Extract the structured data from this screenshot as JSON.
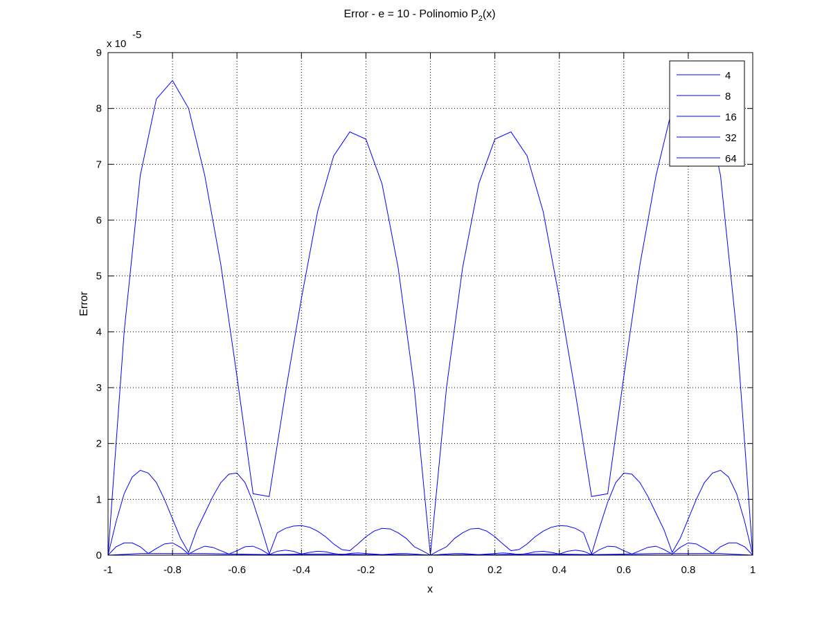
{
  "chart_data": {
    "type": "line",
    "title": "Error - e = 10 - Polinomio P",
    "title_sub": "2",
    "title_suffix": "(x)",
    "xlabel": "x",
    "ylabel": "Error",
    "exponent_base": "x 10",
    "exponent_power": "-5",
    "xlim": [
      -1,
      1
    ],
    "ylim": [
      0,
      9
    ],
    "xticks": [
      -1,
      -0.8,
      -0.6,
      -0.4,
      -0.2,
      0,
      0.2,
      0.4,
      0.6,
      0.8,
      1
    ],
    "xtick_labels": [
      "-1",
      "-0.8",
      "-0.6",
      "-0.4",
      "-0.2",
      "0",
      "0.2",
      "0.4",
      "0.6",
      "0.8",
      "1"
    ],
    "yticks": [
      0,
      1,
      2,
      3,
      4,
      5,
      6,
      7,
      8,
      9
    ],
    "ytick_labels": [
      "0",
      "1",
      "2",
      "3",
      "4",
      "5",
      "6",
      "7",
      "8",
      "9"
    ],
    "grid": true,
    "legend_position": "top-right",
    "line_color": "#0000ff",
    "series": [
      {
        "name": "4",
        "x": [
          -1,
          -0.95,
          -0.9,
          -0.85,
          -0.8,
          -0.75,
          -0.7,
          -0.65,
          -0.6,
          -0.55,
          -0.5,
          -0.45,
          -0.4,
          -0.35,
          -0.3,
          -0.25,
          -0.2,
          -0.15,
          -0.1,
          -0.05,
          0,
          0.05,
          0.1,
          0.15,
          0.2,
          0.25,
          0.3,
          0.35,
          0.4,
          0.45,
          0.5,
          0.55,
          0.6,
          0.65,
          0.7,
          0.75,
          0.8,
          0.85,
          0.9,
          0.95,
          1
        ],
        "y": [
          0,
          4.0,
          6.8,
          8.17,
          8.5,
          8.0,
          6.8,
          5.2,
          3.2,
          1.1,
          1.05,
          2.9,
          4.6,
          6.15,
          7.15,
          7.58,
          7.45,
          6.65,
          5.15,
          3.0,
          0,
          3.0,
          5.15,
          6.65,
          7.45,
          7.58,
          7.15,
          6.15,
          4.6,
          2.9,
          1.05,
          1.1,
          3.2,
          5.2,
          6.8,
          8.0,
          8.5,
          8.17,
          6.8,
          4.0,
          0
        ]
      },
      {
        "name": "8",
        "x": [
          -1,
          -0.975,
          -0.95,
          -0.925,
          -0.9,
          -0.875,
          -0.85,
          -0.825,
          -0.8,
          -0.775,
          -0.75,
          -0.725,
          -0.7,
          -0.675,
          -0.65,
          -0.625,
          -0.6,
          -0.575,
          -0.55,
          -0.525,
          -0.5,
          -0.475,
          -0.45,
          -0.425,
          -0.4,
          -0.375,
          -0.35,
          -0.325,
          -0.3,
          -0.275,
          -0.25,
          -0.225,
          -0.2,
          -0.175,
          -0.15,
          -0.125,
          -0.1,
          -0.075,
          -0.05,
          -0.025,
          0,
          0.025,
          0.05,
          0.075,
          0.1,
          0.125,
          0.15,
          0.175,
          0.2,
          0.225,
          0.25,
          0.275,
          0.3,
          0.325,
          0.35,
          0.375,
          0.4,
          0.425,
          0.45,
          0.475,
          0.5,
          0.525,
          0.55,
          0.575,
          0.6,
          0.625,
          0.65,
          0.675,
          0.7,
          0.725,
          0.75,
          0.775,
          0.8,
          0.825,
          0.85,
          0.875,
          0.9,
          0.925,
          0.95,
          0.975,
          1
        ],
        "y": [
          0,
          0.6,
          1.1,
          1.4,
          1.52,
          1.47,
          1.3,
          1.0,
          0.65,
          0.3,
          0.05,
          0.45,
          0.75,
          1.05,
          1.3,
          1.45,
          1.47,
          1.3,
          0.95,
          0.5,
          0.02,
          0.4,
          0.48,
          0.52,
          0.53,
          0.5,
          0.43,
          0.33,
          0.2,
          0.1,
          0.08,
          0.2,
          0.33,
          0.43,
          0.48,
          0.47,
          0.4,
          0.3,
          0.15,
          0.08,
          0,
          0.08,
          0.15,
          0.3,
          0.4,
          0.47,
          0.48,
          0.43,
          0.33,
          0.2,
          0.08,
          0.1,
          0.2,
          0.33,
          0.43,
          0.5,
          0.53,
          0.52,
          0.48,
          0.4,
          0.02,
          0.5,
          0.95,
          1.3,
          1.47,
          1.45,
          1.3,
          1.05,
          0.75,
          0.45,
          0.05,
          0.3,
          0.65,
          1.0,
          1.3,
          1.47,
          1.52,
          1.4,
          1.1,
          0.6,
          0
        ]
      },
      {
        "name": "16",
        "x": [
          -1,
          -0.975,
          -0.95,
          -0.925,
          -0.9,
          -0.875,
          -0.85,
          -0.825,
          -0.8,
          -0.775,
          -0.75,
          -0.725,
          -0.7,
          -0.675,
          -0.65,
          -0.625,
          -0.6,
          -0.575,
          -0.55,
          -0.525,
          -0.5,
          -0.475,
          -0.45,
          -0.425,
          -0.4,
          -0.375,
          -0.35,
          -0.325,
          -0.3,
          -0.275,
          -0.25,
          -0.225,
          -0.2,
          -0.175,
          -0.15,
          -0.125,
          -0.1,
          -0.075,
          -0.05,
          -0.025,
          0,
          0.025,
          0.05,
          0.075,
          0.1,
          0.125,
          0.15,
          0.175,
          0.2,
          0.225,
          0.25,
          0.275,
          0.3,
          0.325,
          0.35,
          0.375,
          0.4,
          0.425,
          0.45,
          0.475,
          0.5,
          0.525,
          0.55,
          0.575,
          0.6,
          0.625,
          0.65,
          0.675,
          0.7,
          0.725,
          0.75,
          0.775,
          0.8,
          0.825,
          0.85,
          0.875,
          0.9,
          0.925,
          0.95,
          0.975,
          1
        ],
        "y": [
          0,
          0.15,
          0.22,
          0.22,
          0.15,
          0.03,
          0.12,
          0.2,
          0.22,
          0.14,
          0.02,
          0.1,
          0.16,
          0.14,
          0.08,
          0.02,
          0.08,
          0.15,
          0.16,
          0.1,
          0.01,
          0.07,
          0.09,
          0.07,
          0.02,
          0.05,
          0.07,
          0.06,
          0.03,
          0.01,
          0.03,
          0.04,
          0.03,
          0.02,
          0.01,
          0.02,
          0.03,
          0.03,
          0.02,
          0.01,
          0,
          0.01,
          0.02,
          0.03,
          0.03,
          0.02,
          0.01,
          0.02,
          0.03,
          0.04,
          0.03,
          0.01,
          0.03,
          0.06,
          0.07,
          0.05,
          0.02,
          0.07,
          0.09,
          0.07,
          0.01,
          0.1,
          0.16,
          0.15,
          0.08,
          0.02,
          0.08,
          0.14,
          0.16,
          0.1,
          0.02,
          0.14,
          0.22,
          0.2,
          0.12,
          0.03,
          0.15,
          0.22,
          0.22,
          0.15,
          0
        ]
      },
      {
        "name": "32",
        "x": [
          -1,
          -0.9,
          -0.8,
          -0.7,
          -0.6,
          -0.5,
          -0.4,
          -0.3,
          -0.2,
          -0.1,
          0,
          0.1,
          0.2,
          0.3,
          0.4,
          0.5,
          0.6,
          0.7,
          0.8,
          0.9,
          1
        ],
        "y": [
          0,
          0.03,
          0.03,
          0.03,
          0.02,
          0.01,
          0.02,
          0.02,
          0.01,
          0.01,
          0,
          0.01,
          0.01,
          0.02,
          0.02,
          0.01,
          0.02,
          0.03,
          0.03,
          0.03,
          0
        ]
      },
      {
        "name": "64",
        "x": [
          -1,
          -0.5,
          0,
          0.5,
          1
        ],
        "y": [
          0,
          0.005,
          0,
          0.005,
          0
        ]
      }
    ]
  }
}
